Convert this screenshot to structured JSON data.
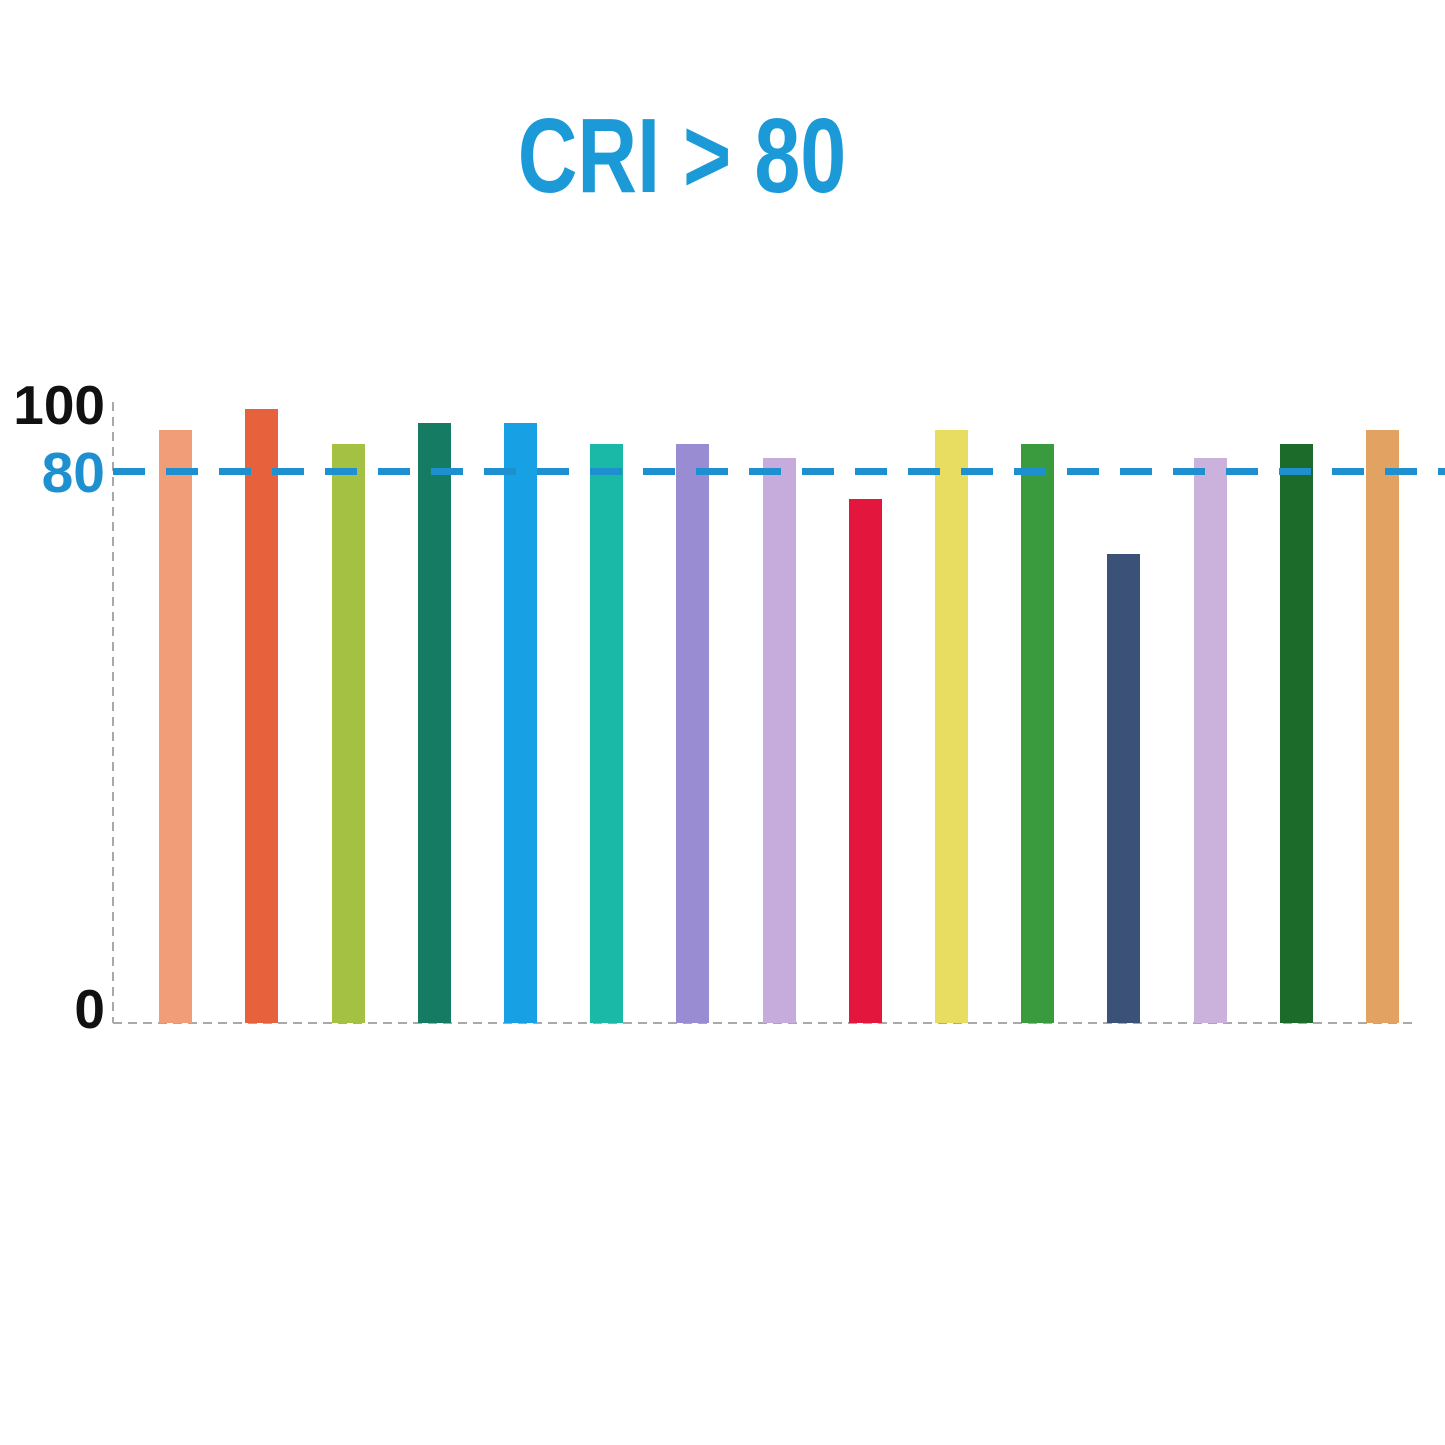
{
  "colors": {
    "title": "#1C9AD8",
    "threshold_line": "#1E90D0",
    "threshold_label": "#1E90D0",
    "axis_line": "#A9A9A9",
    "tick_text": "#111111"
  },
  "chart_data": {
    "type": "bar",
    "title": "CRI > 80",
    "xlabel": "",
    "ylabel": "",
    "ylim": [
      0,
      100
    ],
    "yticks": [
      0,
      80,
      100
    ],
    "threshold": 80,
    "grid": false,
    "legend": false,
    "bars": [
      {
        "name": "light-salmon",
        "value": 86,
        "color": "#F09D78"
      },
      {
        "name": "orange-red",
        "value": 89,
        "color": "#E6613C"
      },
      {
        "name": "yellow-green",
        "value": 84,
        "color": "#A5C144"
      },
      {
        "name": "sea-green",
        "value": 87,
        "color": "#167B63"
      },
      {
        "name": "bright-blue",
        "value": 87,
        "color": "#18A0E4"
      },
      {
        "name": "teal",
        "value": 84,
        "color": "#1AB8A6"
      },
      {
        "name": "medium-purple",
        "value": 84,
        "color": "#9A8CD2"
      },
      {
        "name": "light-purple",
        "value": 82,
        "color": "#C6ACDC"
      },
      {
        "name": "crimson",
        "value": 76,
        "color": "#E3173D"
      },
      {
        "name": "yellow",
        "value": 86,
        "color": "#E8DC61"
      },
      {
        "name": "green",
        "value": 84,
        "color": "#3A9A3E"
      },
      {
        "name": "navy-blue",
        "value": 68,
        "color": "#3C5177"
      },
      {
        "name": "lavender",
        "value": 82,
        "color": "#CAB2DD"
      },
      {
        "name": "dark-green",
        "value": 84,
        "color": "#1C6B2A"
      },
      {
        "name": "tan-orange",
        "value": 86,
        "color": "#E2A262"
      }
    ]
  }
}
